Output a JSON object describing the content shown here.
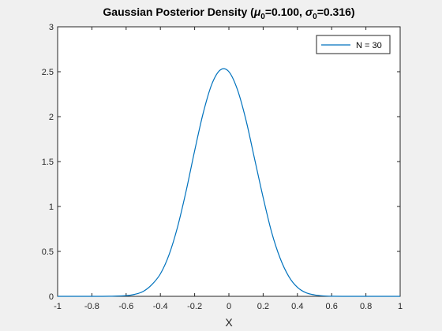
{
  "window": {
    "background": "#f0f0f0"
  },
  "chart_data": {
    "type": "line",
    "title_main": "Gaussian Posterior Density (",
    "title_mu": "μ",
    "title_mu_sub": "0",
    "title_mu_val": "=0.100, ",
    "title_sigma": "σ",
    "title_sigma_sub": "0",
    "title_sigma_val": "=0.316)",
    "xlabel": "X",
    "ylabel": "",
    "xlim": [
      -1,
      1
    ],
    "ylim": [
      0,
      3
    ],
    "xticks": [
      -1,
      -0.8,
      -0.6,
      -0.4,
      -0.2,
      0,
      0.2,
      0.4,
      0.6,
      0.8,
      1
    ],
    "xtick_labels": [
      "-1",
      "-0.8",
      "-0.6",
      "-0.4",
      "-0.2",
      "0",
      "0.2",
      "0.4",
      "0.6",
      "0.8",
      "1"
    ],
    "yticks": [
      0,
      0.5,
      1,
      1.5,
      2,
      2.5,
      3
    ],
    "ytick_labels": [
      "0",
      "0.5",
      "1",
      "1.5",
      "2",
      "2.5",
      "3"
    ],
    "grid": false,
    "legend_position": "top-right",
    "series": [
      {
        "name": "N = 30",
        "color": "#0072bd",
        "x": [
          -1,
          -0.9,
          -0.8,
          -0.7,
          -0.6,
          -0.55,
          -0.5,
          -0.45,
          -0.4,
          -0.35,
          -0.3,
          -0.25,
          -0.2,
          -0.15,
          -0.1,
          -0.05,
          0,
          0.05,
          0.1,
          0.15,
          0.2,
          0.25,
          0.3,
          0.35,
          0.4,
          0.45,
          0.5,
          0.55,
          0.6,
          0.7,
          0.8,
          0.9,
          1
        ],
        "y": [
          0,
          0,
          0,
          0.001,
          0.008,
          0.022,
          0.055,
          0.13,
          0.25,
          0.46,
          0.77,
          1.17,
          1.62,
          2.04,
          2.36,
          2.52,
          2.5,
          2.3,
          1.96,
          1.53,
          1.1,
          0.71,
          0.42,
          0.22,
          0.1,
          0.04,
          0.016,
          0.005,
          0.001,
          0,
          0,
          0,
          0
        ]
      }
    ]
  }
}
